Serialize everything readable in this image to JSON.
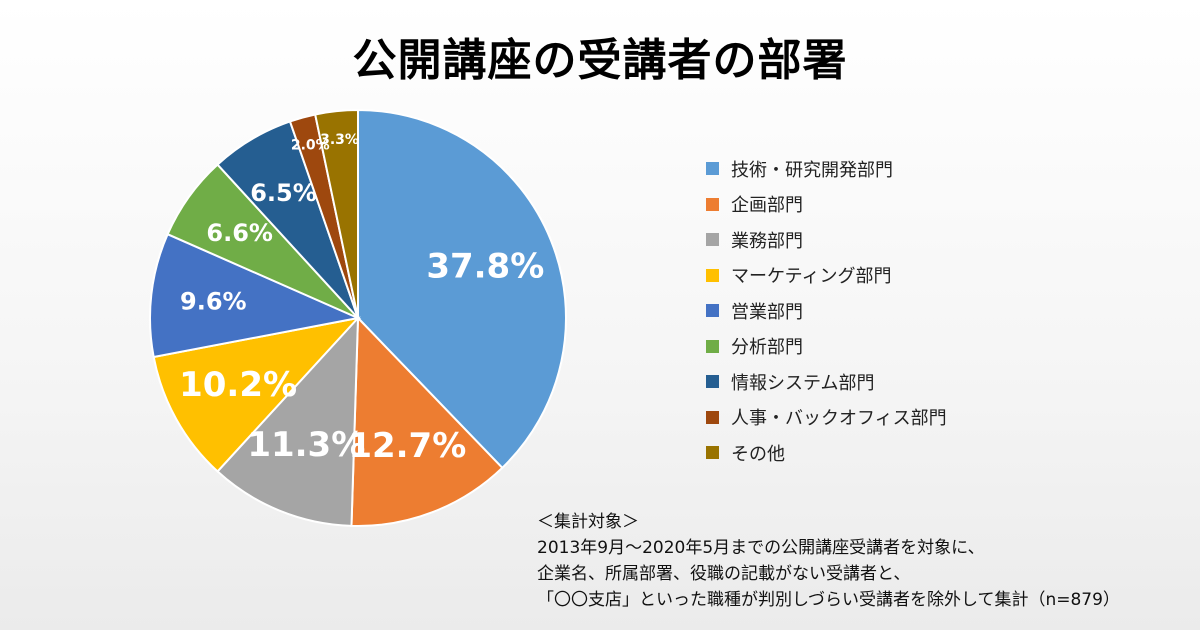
{
  "chart_data": {
    "type": "pie",
    "title": "公開講座の受講者の部署",
    "slices": [
      {
        "label": "技術・研究開発部門",
        "value": 37.8,
        "display": "37.8%",
        "color": "#5b9bd5"
      },
      {
        "label": "企画部門",
        "value": 12.7,
        "display": "12.7%",
        "color": "#ed7d31"
      },
      {
        "label": "業務部門",
        "value": 11.3,
        "display": "11.3%",
        "color": "#a5a5a5"
      },
      {
        "label": "マーケティング部門",
        "value": 10.2,
        "display": "10.2%",
        "color": "#ffc000"
      },
      {
        "label": "営業部門",
        "value": 9.6,
        "display": "9.6%",
        "color": "#4472c4"
      },
      {
        "label": "分析部門",
        "value": 6.6,
        "display": "6.6%",
        "color": "#70ad47"
      },
      {
        "label": "情報システム部門",
        "value": 6.5,
        "display": "6.5%",
        "color": "#255e91"
      },
      {
        "label": "人事・バックオフィス部門",
        "value": 2.0,
        "display": "2.0%",
        "color": "#9e480e"
      },
      {
        "label": "その他",
        "value": 3.3,
        "display": "3.3%",
        "color": "#997300"
      }
    ],
    "legend_position": "right"
  },
  "note": {
    "heading": "＜集計対象＞",
    "lines": [
      "2013年9月〜2020年5月までの公開講座受講者を対象に、",
      "企業名、所属部署、役職の記載がない受講者と、",
      "「〇〇支店」といった職種が判別しづらい受講者を除外して集計（n=879）"
    ]
  }
}
